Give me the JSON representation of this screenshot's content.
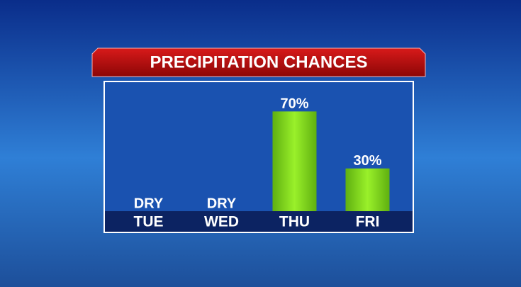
{
  "chart_data": {
    "type": "bar",
    "title": "PRECIPITATION CHANCES",
    "categories": [
      "TUE",
      "WED",
      "THU",
      "FRI"
    ],
    "values": [
      0,
      0,
      70,
      30
    ],
    "value_labels": [
      "DRY",
      "DRY",
      "70%",
      "30%"
    ],
    "color": "#86e01c",
    "ylim": [
      0,
      100
    ]
  }
}
